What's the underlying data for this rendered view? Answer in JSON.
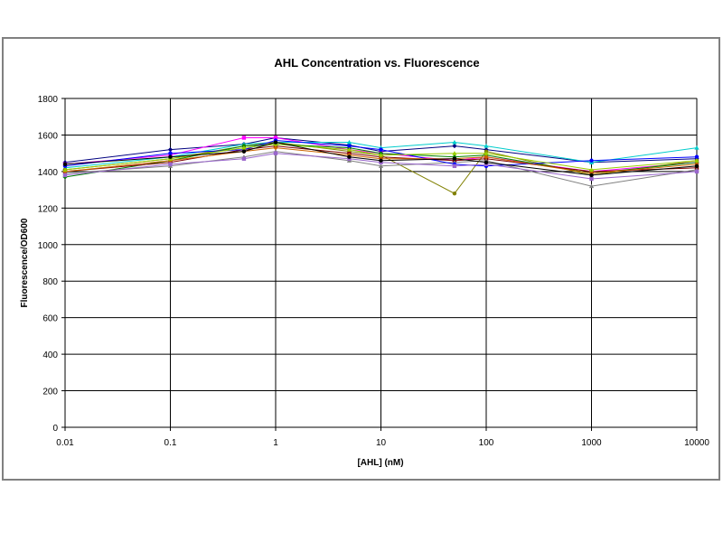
{
  "chart_data": {
    "type": "line",
    "title": "AHL Concentration vs. Fluorescence",
    "xlabel": "[AHL] (nM)",
    "ylabel": "Fluorescence/OD600",
    "x_scale": "log",
    "x": [
      0.01,
      0.1,
      0.5,
      1,
      5,
      10,
      50,
      100,
      1000,
      10000
    ],
    "xlim": [
      0.01,
      10000
    ],
    "ylim": [
      0,
      1800
    ],
    "y_ticks": [
      0,
      200,
      400,
      600,
      800,
      1000,
      1200,
      1400,
      1600,
      1800
    ],
    "x_ticks": [
      0.01,
      0.1,
      1,
      10,
      100,
      1000,
      10000
    ],
    "x_tick_labels": [
      "0.01",
      "0.1",
      "1",
      "10",
      "100",
      "1000",
      "10000"
    ],
    "grid": true,
    "legend": "none",
    "series": [
      {
        "color": "#000080",
        "values": [
          1450,
          1520,
          1550,
          1585,
          1545,
          1510,
          1540,
          1520,
          1450,
          1470
        ]
      },
      {
        "color": "#ff00ff",
        "values": [
          1440,
          1490,
          1585,
          1585,
          1520,
          1500,
          1460,
          1480,
          1400,
          1450
        ]
      },
      {
        "color": "#00cccc",
        "values": [
          1420,
          1480,
          1550,
          1560,
          1560,
          1530,
          1560,
          1540,
          1450,
          1530
        ]
      },
      {
        "color": "#808000",
        "values": [
          1410,
          1470,
          1540,
          1560,
          1510,
          1490,
          1280,
          1510,
          1380,
          1460
        ]
      },
      {
        "color": "#008000",
        "values": [
          1370,
          1460,
          1540,
          1550,
          1530,
          1500,
          1480,
          1490,
          1390,
          1450
        ]
      },
      {
        "color": "#800000",
        "values": [
          1400,
          1450,
          1520,
          1540,
          1500,
          1480,
          1460,
          1470,
          1400,
          1420
        ]
      },
      {
        "color": "#808080",
        "values": [
          1390,
          1430,
          1480,
          1510,
          1460,
          1430,
          1450,
          1460,
          1320,
          1410
        ]
      },
      {
        "color": "#0000ff",
        "values": [
          1430,
          1500,
          1520,
          1570,
          1540,
          1520,
          1440,
          1430,
          1460,
          1480
        ]
      },
      {
        "color": "#cc6600",
        "values": [
          1400,
          1460,
          1510,
          1530,
          1490,
          1470,
          1470,
          1480,
          1390,
          1440
        ]
      },
      {
        "color": "#9966cc",
        "values": [
          1380,
          1440,
          1470,
          1500,
          1470,
          1450,
          1430,
          1440,
          1360,
          1400
        ]
      },
      {
        "color": "#99cc00",
        "values": [
          1410,
          1470,
          1530,
          1550,
          1520,
          1490,
          1500,
          1500,
          1410,
          1460
        ]
      },
      {
        "color": "#000000",
        "values": [
          1440,
          1480,
          1510,
          1560,
          1480,
          1460,
          1470,
          1450,
          1380,
          1430
        ]
      }
    ]
  }
}
